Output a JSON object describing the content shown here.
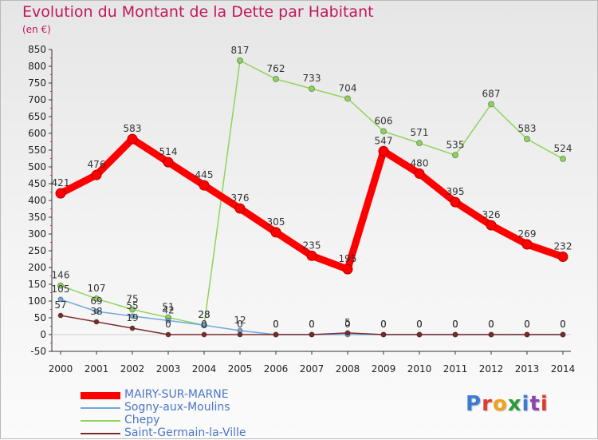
{
  "title": "Evolution du Montant de la Dette par Habitant",
  "subtitle": "(en €)",
  "logo": {
    "text": "Proxiti",
    "colors": [
      "#3b7bd8",
      "#e03a2e",
      "#f2a21b",
      "#2a9d3a",
      "#3b7bd8",
      "#8e44ad",
      "#e03a2e"
    ]
  },
  "chart_data": {
    "type": "line",
    "title": "Evolution du Montant de la Dette par Habitant",
    "ylabel": "(en €)",
    "ylim": [
      -50,
      850
    ],
    "yticks": [
      -50,
      0,
      50,
      100,
      150,
      200,
      250,
      300,
      350,
      400,
      450,
      500,
      550,
      600,
      650,
      700,
      750,
      800,
      850
    ],
    "x": [
      "2000",
      "2001",
      "2002",
      "2003",
      "2004",
      "2005",
      "2006",
      "2007",
      "2008",
      "2009",
      "2010",
      "2011",
      "2012",
      "2013",
      "2014"
    ],
    "grid": false,
    "legend_position": "bottom-left",
    "series": [
      {
        "name": "MAIRY-SUR-MARNE",
        "color": "#ff0000",
        "values": [
          421,
          476,
          583,
          514,
          445,
          376,
          305,
          235,
          195,
          547,
          480,
          395,
          326,
          269,
          232
        ]
      },
      {
        "name": "Sogny-aux-Moulins",
        "color": "#6fa8dc",
        "values": [
          105,
          69,
          55,
          42,
          28,
          12,
          0,
          0,
          0,
          0,
          0,
          0,
          0,
          0,
          0
        ]
      },
      {
        "name": "Chepy",
        "color": "#8fd45a",
        "values": [
          146,
          107,
          75,
          51,
          28,
          817,
          762,
          733,
          704,
          606,
          571,
          535,
          687,
          583,
          524
        ]
      },
      {
        "name": "Saint-Germain-la-Ville",
        "color": "#7b2b2b",
        "values": [
          57,
          38,
          19,
          0,
          0,
          0,
          0,
          0,
          5,
          0,
          0,
          0,
          0,
          0,
          0
        ]
      }
    ]
  }
}
